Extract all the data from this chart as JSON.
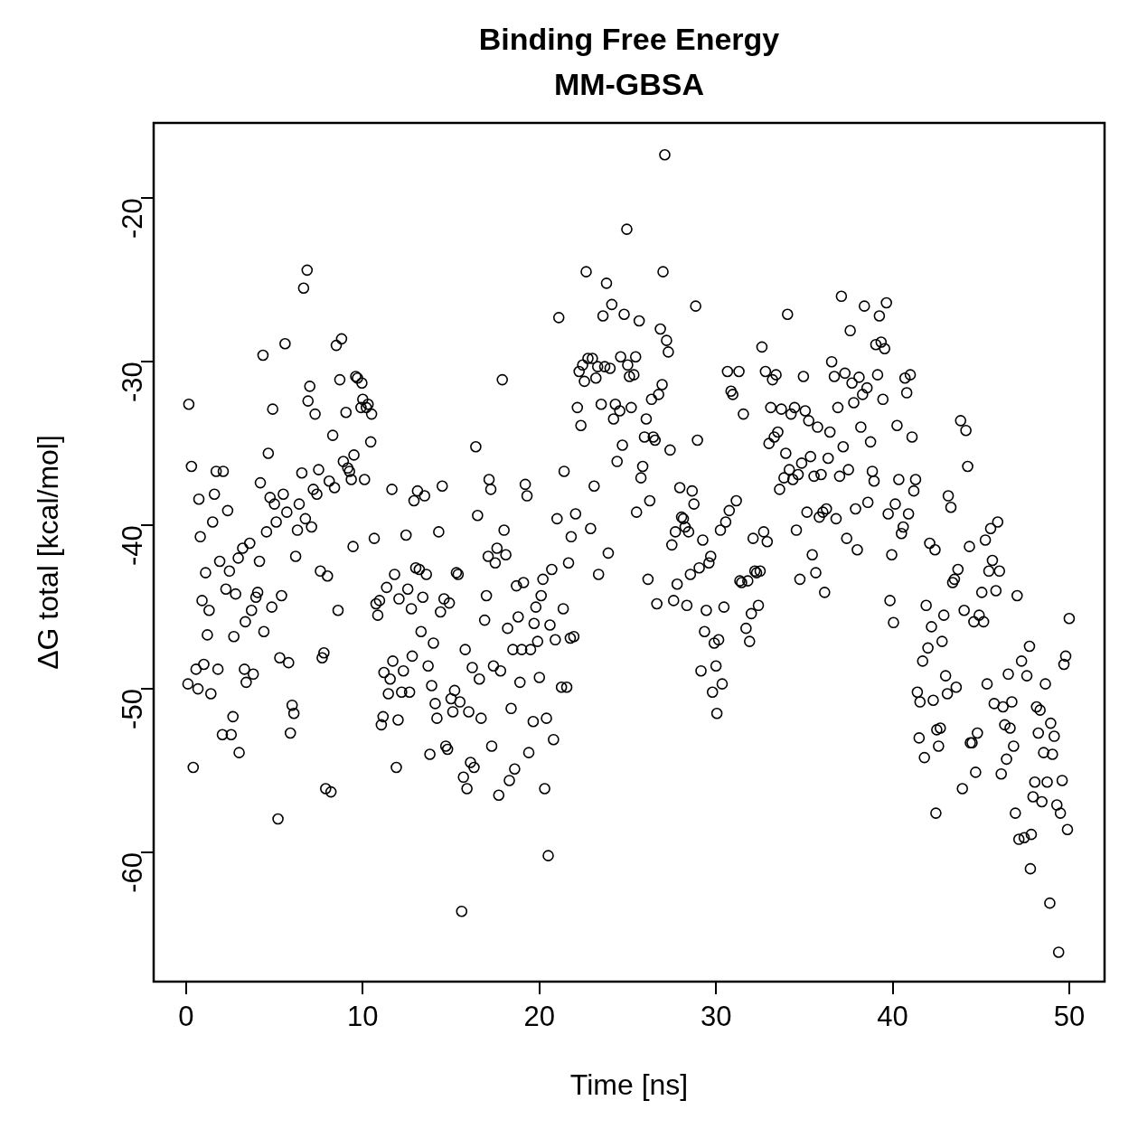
{
  "chart_data": {
    "type": "scatter",
    "title": "Binding Free Energy\nMM-GBSA",
    "xlabel": "Time [ns]",
    "ylabel": "ΔG total [kcal/mol]",
    "xlim": [
      -1.84,
      52.0
    ],
    "ylim": [
      -67.9,
      -15.4
    ],
    "xticks": [
      0,
      10,
      20,
      30,
      40,
      50
    ],
    "yticks": [
      -60,
      -50,
      -40,
      -30,
      -20
    ],
    "grid": false,
    "legend": false,
    "marker": "circle",
    "series": [
      {
        "color": "#000000",
        "x": [
          0.15,
          0.3,
          0.4,
          0.1,
          0.56,
          0.67,
          0.72,
          0.8,
          0.9,
          1.0,
          1.1,
          1.2,
          1.3,
          1.4,
          1.5,
          1.6,
          1.7,
          1.8,
          1.9,
          2.05,
          2.1,
          2.25,
          2.35,
          2.45,
          2.55,
          2.65,
          2.7,
          2.8,
          2.95,
          3.0,
          3.2,
          3.3,
          3.35,
          3.4,
          3.6,
          3.7,
          3.8,
          3.95,
          4.05,
          4.15,
          4.2,
          4.35,
          4.4,
          4.55,
          4.65,
          4.75,
          4.85,
          4.9,
          5.0,
          5.1,
          5.2,
          5.3,
          5.4,
          5.5,
          5.6,
          5.7,
          5.8,
          5.9,
          6.0,
          6.1,
          6.2,
          6.3,
          6.4,
          6.55,
          6.65,
          6.75,
          6.85,
          6.9,
          7.0,
          7.1,
          7.2,
          7.3,
          7.4,
          7.5,
          7.6,
          7.7,
          7.8,
          7.9,
          8.0,
          8.1,
          8.2,
          8.3,
          8.4,
          8.5,
          8.6,
          8.7,
          8.8,
          8.9,
          9.05,
          9.15,
          9.25,
          9.35,
          9.45,
          9.5,
          9.6,
          9.7,
          9.9,
          9.95,
          10.0,
          10.1,
          10.2,
          10.3,
          10.45,
          10.5,
          10.65,
          10.75,
          10.85,
          10.95,
          11.05,
          11.15,
          11.2,
          11.35,
          11.45,
          11.55,
          11.65,
          11.7,
          11.8,
          11.9,
          12.0,
          12.05,
          12.2,
          12.3,
          12.45,
          12.55,
          12.65,
          12.75,
          12.8,
          12.9,
          13.0,
          13.1,
          13.2,
          13.3,
          13.4,
          13.5,
          13.6,
          13.7,
          13.8,
          13.9,
          14.0,
          14.1,
          14.2,
          14.3,
          14.4,
          14.5,
          14.6,
          14.7,
          14.8,
          14.9,
          15.0,
          15.1,
          15.2,
          15.3,
          15.4,
          15.5,
          15.6,
          15.7,
          15.8,
          15.9,
          16.0,
          16.1,
          16.2,
          16.3,
          16.4,
          16.5,
          16.6,
          16.7,
          16.9,
          17.0,
          17.1,
          17.15,
          17.25,
          17.3,
          17.4,
          17.5,
          17.6,
          17.7,
          17.8,
          17.9,
          18.0,
          18.1,
          18.2,
          18.3,
          18.4,
          18.5,
          18.6,
          18.7,
          18.8,
          18.9,
          19.0,
          19.1,
          19.2,
          19.3,
          19.4,
          19.5,
          19.65,
          19.7,
          19.8,
          19.9,
          20.0,
          20.1,
          20.2,
          20.3,
          20.4,
          20.5,
          20.6,
          20.7,
          20.8,
          20.9,
          21.0,
          21.1,
          21.25,
          21.35,
          21.4,
          21.55,
          21.65,
          21.75,
          21.8,
          21.95,
          22.05,
          22.15,
          22.25,
          22.35,
          22.45,
          22.55,
          22.65,
          22.75,
          22.9,
          23.0,
          23.1,
          23.2,
          23.3,
          23.35,
          23.5,
          23.6,
          23.7,
          23.8,
          23.9,
          24.0,
          24.1,
          24.2,
          24.3,
          24.4,
          24.55,
          24.6,
          24.7,
          24.8,
          24.95,
          25.0,
          25.1,
          25.2,
          25.35,
          25.45,
          25.5,
          25.65,
          25.75,
          25.85,
          25.95,
          26.05,
          26.15,
          26.25,
          26.35,
          26.45,
          26.55,
          26.65,
          26.75,
          26.85,
          26.95,
          27.0,
          27.1,
          27.2,
          27.3,
          27.4,
          27.5,
          27.6,
          27.7,
          27.8,
          27.95,
          28.05,
          28.15,
          28.25,
          28.35,
          28.45,
          28.55,
          28.65,
          28.75,
          28.85,
          28.95,
          29.05,
          29.15,
          29.25,
          29.35,
          29.45,
          29.6,
          29.7,
          29.8,
          29.9,
          30.0,
          30.05,
          30.15,
          30.25,
          30.35,
          30.45,
          30.55,
          30.65,
          30.75,
          30.85,
          30.95,
          31.15,
          31.3,
          31.35,
          31.45,
          31.55,
          31.7,
          31.8,
          31.9,
          32.0,
          32.1,
          32.2,
          32.3,
          32.4,
          32.5,
          32.6,
          32.7,
          32.8,
          32.9,
          33.0,
          33.1,
          33.2,
          33.3,
          33.4,
          33.5,
          33.6,
          33.7,
          33.85,
          33.95,
          34.05,
          34.15,
          34.25,
          34.35,
          34.45,
          34.55,
          34.65,
          34.75,
          34.85,
          34.95,
          35.05,
          35.15,
          35.25,
          35.35,
          35.45,
          35.55,
          35.65,
          35.75,
          35.85,
          35.95,
          36.05,
          36.15,
          36.25,
          36.35,
          36.45,
          36.55,
          36.7,
          36.8,
          36.9,
          37.0,
          37.1,
          37.2,
          37.3,
          37.4,
          37.5,
          37.6,
          37.7,
          37.8,
          37.9,
          38.0,
          38.1,
          38.2,
          38.3,
          38.4,
          38.55,
          38.6,
          38.75,
          38.85,
          38.95,
          39.05,
          39.15,
          39.25,
          39.35,
          39.45,
          39.55,
          39.65,
          39.75,
          39.85,
          39.95,
          40.05,
          40.15,
          40.25,
          40.35,
          40.5,
          40.6,
          40.7,
          40.8,
          40.9,
          41.0,
          41.1,
          41.2,
          41.3,
          41.4,
          41.5,
          41.55,
          41.7,
          41.8,
          41.9,
          42.0,
          42.1,
          42.2,
          42.3,
          42.4,
          42.45,
          42.5,
          42.6,
          42.7,
          42.8,
          42.9,
          43.0,
          43.1,
          43.15,
          43.3,
          43.4,
          43.5,
          43.6,
          43.7,
          43.85,
          43.95,
          44.05,
          44.15,
          44.25,
          44.35,
          44.4,
          44.5,
          44.6,
          44.7,
          44.8,
          44.9,
          45.05,
          45.15,
          45.25,
          45.35,
          45.45,
          45.55,
          45.65,
          45.75,
          45.85,
          45.95,
          46.05,
          46.15,
          46.25,
          46.35,
          46.45,
          46.55,
          46.65,
          46.75,
          46.85,
          46.95,
          47.05,
          47.15,
          47.3,
          47.45,
          47.6,
          47.75,
          47.85,
          47.95,
          48.05,
          48.15,
          48.25,
          48.35,
          48.45,
          48.55,
          48.65,
          48.75,
          48.9,
          48.95,
          49.05,
          49.15,
          49.3,
          49.4,
          49.5,
          49.6,
          49.7,
          49.8,
          49.9,
          50.0,
          47.8
        ],
        "values": [
          -32.6,
          -36.4,
          -54.8,
          -49.7,
          -48.8,
          -50.0,
          -38.4,
          -40.7,
          -44.6,
          -48.5,
          -42.9,
          -46.7,
          -45.2,
          -50.3,
          -39.8,
          -38.1,
          -36.7,
          -48.8,
          -42.2,
          -52.8,
          -36.7,
          -43.9,
          -39.1,
          -42.8,
          -52.8,
          -51.7,
          -46.8,
          -44.2,
          -42.0,
          -53.9,
          -41.4,
          -48.8,
          -45.9,
          -49.6,
          -41.1,
          -45.2,
          -49.1,
          -44.4,
          -44.1,
          -42.2,
          -37.4,
          -29.6,
          -46.5,
          -40.4,
          -35.6,
          -38.3,
          -45.0,
          -32.9,
          -38.7,
          -39.8,
          -57.95,
          -48.1,
          -44.3,
          -38.1,
          -28.9,
          -39.2,
          -48.4,
          -52.7,
          -51.0,
          -51.5,
          -41.9,
          -40.3,
          -38.7,
          -36.8,
          -25.5,
          -39.6,
          -24.4,
          -32.4,
          -31.5,
          -40.1,
          -37.8,
          -33.2,
          -38.1,
          -36.6,
          -42.8,
          -48.1,
          -47.8,
          -56.1,
          -43.1,
          -37.3,
          -56.3,
          -34.5,
          -37.7,
          -29.0,
          -45.2,
          -31.1,
          -28.6,
          -36.1,
          -33.1,
          -36.5,
          -36.7,
          -37.2,
          -41.3,
          -35.7,
          -30.9,
          -31.0,
          -32.8,
          -31.3,
          -32.3,
          -37.2,
          -32.8,
          -32.6,
          -34.9,
          -33.2,
          -40.8,
          -44.8,
          -45.5,
          -44.6,
          -52.2,
          -51.7,
          -49.0,
          -43.8,
          -50.3,
          -49.4,
          -37.8,
          -48.3,
          -43.0,
          -54.8,
          -51.9,
          -44.5,
          -50.2,
          -48.9,
          -40.6,
          -43.9,
          -50.2,
          -45.1,
          -48.0,
          -38.5,
          -42.6,
          -37.9,
          -42.7,
          -46.5,
          -44.4,
          -38.2,
          -43.0,
          -48.6,
          -54.0,
          -49.8,
          -47.2,
          -50.9,
          -51.8,
          -40.4,
          -45.3,
          -37.6,
          -44.5,
          -53.5,
          -53.7,
          -44.75,
          -50.6,
          -51.4,
          -50.1,
          -42.9,
          -43.0,
          -50.8,
          -63.6,
          -55.4,
          -47.6,
          -56.1,
          -51.4,
          -54.5,
          -48.7,
          -54.8,
          -35.2,
          -39.4,
          -49.4,
          -51.8,
          -45.8,
          -44.3,
          -41.9,
          -37.2,
          -37.8,
          -53.5,
          -48.6,
          -42.3,
          -41.4,
          -56.5,
          -48.9,
          -31.1,
          -40.3,
          -41.8,
          -46.3,
          -55.6,
          -51.2,
          -47.6,
          -54.9,
          -43.7,
          -45.6,
          -49.6,
          -47.6,
          -43.5,
          -37.5,
          -38.2,
          -53.9,
          -47.6,
          -52.0,
          -46.0,
          -45.0,
          -47.1,
          -49.3,
          -44.3,
          -43.3,
          -56.1,
          -51.8,
          -60.2,
          -46.1,
          -42.7,
          -53.1,
          -47.0,
          -39.6,
          -27.3,
          -49.9,
          -45.1,
          -36.7,
          -49.9,
          -42.3,
          -46.9,
          -40.7,
          -46.8,
          -39.3,
          -32.8,
          -30.6,
          -33.9,
          -30.2,
          -31.2,
          -24.5,
          -29.8,
          -40.2,
          -29.8,
          -37.6,
          -31.0,
          -30.3,
          -43.0,
          -32.6,
          -27.2,
          -30.3,
          -25.2,
          -41.7,
          -30.4,
          -26.5,
          -33.5,
          -32.6,
          -36.1,
          -33.0,
          -29.7,
          -35.1,
          -27.1,
          -21.9,
          -30.2,
          -30.9,
          -32.8,
          -30.8,
          -29.7,
          -39.2,
          -27.5,
          -37.1,
          -36.4,
          -34.6,
          -33.5,
          -43.3,
          -38.5,
          -32.3,
          -34.6,
          -34.8,
          -44.8,
          -32.0,
          -28.0,
          -31.4,
          -24.5,
          -17.35,
          -28.7,
          -29.4,
          -35.4,
          -41.2,
          -44.6,
          -40.4,
          -43.6,
          -37.7,
          -39.5,
          -39.6,
          -40.1,
          -44.9,
          -40.4,
          -43.0,
          -37.9,
          -38.7,
          -26.6,
          -34.8,
          -42.6,
          -48.9,
          -40.9,
          -46.5,
          -45.2,
          -42.3,
          -41.9,
          -50.2,
          -47.2,
          -48.6,
          -51.5,
          -47.0,
          -40.3,
          -49.7,
          -45.0,
          -39.8,
          -30.6,
          -39.1,
          -31.8,
          -32.0,
          -38.5,
          -30.6,
          -43.4,
          -43.5,
          -33.2,
          -46.3,
          -43.4,
          -47.1,
          -45.4,
          -40.8,
          -42.8,
          -42.9,
          -44.9,
          -42.8,
          -29.1,
          -40.4,
          -30.6,
          -41.0,
          -35.0,
          -32.8,
          -31.1,
          -34.6,
          -30.8,
          -34.3,
          -37.8,
          -32.9,
          -37.1,
          -35.6,
          -27.1,
          -36.6,
          -33.2,
          -37.2,
          -32.8,
          -40.3,
          -36.9,
          -43.3,
          -36.2,
          -30.9,
          -33.0,
          -39.2,
          -33.6,
          -35.8,
          -41.8,
          -37.0,
          -42.9,
          -34.0,
          -39.5,
          -36.9,
          -39.2,
          -44.1,
          -39.0,
          -35.9,
          -34.3,
          -30.0,
          -30.9,
          -39.6,
          -32.8,
          -37.0,
          -26.0,
          -35.2,
          -30.7,
          -40.8,
          -36.6,
          -28.1,
          -31.3,
          -32.5,
          -39.0,
          -41.5,
          -30.95,
          -34.0,
          -32.0,
          -26.6,
          -31.6,
          -38.6,
          -34.9,
          -36.7,
          -37.3,
          -28.95,
          -30.8,
          -27.2,
          -28.8,
          -32.3,
          -29.2,
          -26.4,
          -39.3,
          -44.6,
          -41.8,
          -45.95,
          -38.7,
          -33.9,
          -37.2,
          -40.5,
          -40.1,
          -31.0,
          -31.9,
          -39.3,
          -30.8,
          -34.6,
          -37.9,
          -37.2,
          -50.2,
          -53.0,
          -50.8,
          -48.3,
          -54.2,
          -44.9,
          -47.5,
          -41.1,
          -46.2,
          -50.7,
          -41.5,
          -57.6,
          -52.5,
          -53.5,
          -52.4,
          -47.1,
          -45.5,
          -49.2,
          -50.3,
          -38.2,
          -38.9,
          -43.5,
          -43.3,
          -49.9,
          -42.7,
          -33.6,
          -56.1,
          -45.2,
          -34.2,
          -36.4,
          -41.3,
          -53.3,
          -53.3,
          -45.9,
          -55.1,
          -52.7,
          -45.5,
          -44.1,
          -45.9,
          -40.9,
          -49.7,
          -42.8,
          -40.2,
          -42.15,
          -50.9,
          -44.0,
          -39.8,
          -42.8,
          -55.2,
          -51.1,
          -52.2,
          -54.3,
          -49.1,
          -52.4,
          -50.8,
          -53.5,
          -57.6,
          -44.3,
          -59.2,
          -48.3,
          -59.1,
          -49.2,
          -47.4,
          -58.9,
          -56.6,
          -55.7,
          -51.1,
          -52.7,
          -51.3,
          -56.9,
          -53.9,
          -49.7,
          -55.7,
          -63.1,
          -52.1,
          -54.0,
          -52.9,
          -57.1,
          -66.1,
          -57.6,
          -55.6,
          -48.5,
          -48.0,
          -58.6,
          -45.7,
          -61.0
        ]
      }
    ]
  }
}
